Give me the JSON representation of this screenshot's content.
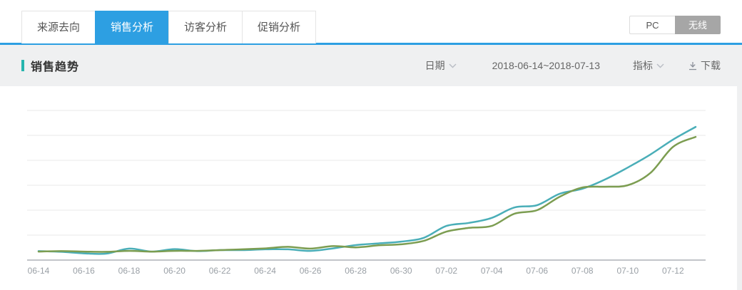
{
  "tabs": {
    "items": [
      {
        "label": "来源去向",
        "active": false
      },
      {
        "label": "销售分析",
        "active": true
      },
      {
        "label": "访客分析",
        "active": false
      },
      {
        "label": "促销分析",
        "active": false
      }
    ]
  },
  "device_toggle": {
    "pc": "PC",
    "wireless": "无线",
    "selected": "无线"
  },
  "panel": {
    "title": "销售趋势",
    "date_label": "日期",
    "date_range": "2018-06-14~2018-07-13",
    "metric_label": "指标",
    "download_label": "下载"
  },
  "colors": {
    "active_tab_blue": "#2D9FE2",
    "title_accent_teal": "#27b5ae",
    "line_teal": "#4AAEB8",
    "line_green": "#7C9D51",
    "gridline": "#e9e9e9",
    "axis_line": "#c2c5c9",
    "axis_label": "#9aa0a6",
    "toggle_selected_bg": "#a6a6a6"
  },
  "chart_data": {
    "type": "line",
    "title": "销售趋势",
    "xlabel": "",
    "ylabel": "",
    "grid": true,
    "legend": "none",
    "y_axis_labels_visible": false,
    "ylim": [
      0,
      7
    ],
    "x_tick_step": 2,
    "x": [
      "06-14",
      "06-15",
      "06-16",
      "06-17",
      "06-18",
      "06-19",
      "06-20",
      "06-21",
      "06-22",
      "06-23",
      "06-24",
      "06-25",
      "06-26",
      "06-27",
      "06-28",
      "06-29",
      "06-30",
      "07-01",
      "07-02",
      "07-03",
      "07-04",
      "07-05",
      "07-06",
      "07-07",
      "07-08",
      "07-09",
      "07-10",
      "07-11",
      "07-12",
      "07-13"
    ],
    "x_tick_labels": [
      "06-14",
      "06-16",
      "06-18",
      "06-20",
      "06-22",
      "06-24",
      "06-26",
      "06-28",
      "06-30",
      "07-02",
      "07-04",
      "07-06",
      "07-08",
      "07-10",
      "07-12"
    ],
    "series": [
      {
        "name": "line-1",
        "color": "#4AAEB8",
        "values": [
          0.36,
          0.33,
          0.27,
          0.26,
          0.46,
          0.34,
          0.44,
          0.36,
          0.4,
          0.4,
          0.43,
          0.43,
          0.37,
          0.47,
          0.6,
          0.67,
          0.74,
          0.89,
          1.37,
          1.49,
          1.69,
          2.11,
          2.2,
          2.66,
          2.86,
          3.23,
          3.71,
          4.23,
          4.83,
          5.34
        ]
      },
      {
        "name": "line-2",
        "color": "#7C9D51",
        "values": [
          0.34,
          0.36,
          0.34,
          0.33,
          0.37,
          0.34,
          0.37,
          0.37,
          0.4,
          0.43,
          0.47,
          0.53,
          0.46,
          0.56,
          0.51,
          0.59,
          0.63,
          0.77,
          1.14,
          1.29,
          1.37,
          1.86,
          2.0,
          2.54,
          2.91,
          2.94,
          3.0,
          3.49,
          4.54,
          4.94
        ]
      }
    ]
  }
}
